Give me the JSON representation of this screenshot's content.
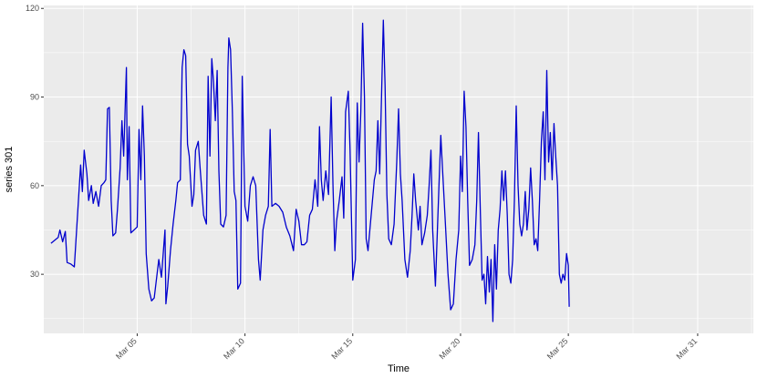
{
  "chart_data": {
    "type": "line",
    "title": "",
    "xlabel": "Time",
    "ylabel": "series 301",
    "xlim": [
      "2023-02-28T16:00",
      "2023-04-02T14:00"
    ],
    "ylim": [
      10,
      121
    ],
    "x_ticks": [
      {
        "label": "Mar 05",
        "date": "2023-03-05"
      },
      {
        "label": "Mar 10",
        "date": "2023-03-10"
      },
      {
        "label": "Mar 15",
        "date": "2023-03-15"
      },
      {
        "label": "Mar 20",
        "date": "2023-03-20"
      },
      {
        "label": "Mar 25",
        "date": "2023-03-25"
      },
      {
        "label": "Mar 31",
        "date": "2023-03-31"
      }
    ],
    "y_ticks": [
      30,
      60,
      90,
      120
    ],
    "grid": true,
    "legend": "none",
    "colors": {
      "line": "#0000cd",
      "panel": "#ebebeb",
      "grid": "#ffffff"
    },
    "series": [
      {
        "points": [
          [
            "2023-03-01T00:00",
            40.5
          ],
          [
            "2023-03-01T08:00",
            42.5
          ],
          [
            "2023-03-01T10:00",
            45
          ],
          [
            "2023-03-01T13:00",
            41
          ],
          [
            "2023-03-01T16:00",
            44.5
          ],
          [
            "2023-03-01T18:00",
            34
          ],
          [
            "2023-03-01T22:00",
            33.5
          ],
          [
            "2023-03-02T02:00",
            32.5
          ],
          [
            "2023-03-02T06:00",
            52
          ],
          [
            "2023-03-02T09:00",
            67
          ],
          [
            "2023-03-02T11:00",
            58
          ],
          [
            "2023-03-02T13:00",
            72
          ],
          [
            "2023-03-02T16:00",
            64
          ],
          [
            "2023-03-02T18:00",
            55
          ],
          [
            "2023-03-02T21:00",
            60
          ],
          [
            "2023-03-02T23:00",
            54
          ],
          [
            "2023-03-03T02:00",
            58
          ],
          [
            "2023-03-03T05:00",
            53
          ],
          [
            "2023-03-03T08:00",
            60
          ],
          [
            "2023-03-03T11:00",
            61
          ],
          [
            "2023-03-03T13:00",
            62
          ],
          [
            "2023-03-03T15:00",
            86
          ],
          [
            "2023-03-03T17:00",
            86.5
          ],
          [
            "2023-03-03T19:00",
            55
          ],
          [
            "2023-03-03T21:00",
            43
          ],
          [
            "2023-03-04T00:00",
            44
          ],
          [
            "2023-03-04T02:00",
            52
          ],
          [
            "2023-03-04T05:00",
            66
          ],
          [
            "2023-03-04T07:00",
            82
          ],
          [
            "2023-03-04T09:00",
            70
          ],
          [
            "2023-03-04T12:00",
            100
          ],
          [
            "2023-03-04T13:00",
            62
          ],
          [
            "2023-03-04T15:00",
            80
          ],
          [
            "2023-03-04T17:00",
            44
          ],
          [
            "2023-03-05T00:00",
            46
          ],
          [
            "2023-03-05T02:00",
            79
          ],
          [
            "2023-03-05T04:00",
            62
          ],
          [
            "2023-03-05T06:00",
            87
          ],
          [
            "2023-03-05T08:00",
            70
          ],
          [
            "2023-03-05T10:00",
            37
          ],
          [
            "2023-03-05T13:00",
            25
          ],
          [
            "2023-03-05T16:00",
            21
          ],
          [
            "2023-03-05T19:00",
            22
          ],
          [
            "2023-03-06T00:00",
            35
          ],
          [
            "2023-03-06T03:00",
            29
          ],
          [
            "2023-03-06T07:00",
            45
          ],
          [
            "2023-03-06T08:00",
            20
          ],
          [
            "2023-03-06T10:00",
            26
          ],
          [
            "2023-03-06T13:00",
            38
          ],
          [
            "2023-03-06T16:00",
            47
          ],
          [
            "2023-03-06T19:00",
            55
          ],
          [
            "2023-03-06T21:00",
            61
          ],
          [
            "2023-03-07T00:00",
            62
          ],
          [
            "2023-03-07T02:00",
            100
          ],
          [
            "2023-03-07T04:00",
            106
          ],
          [
            "2023-03-07T06:00",
            104
          ],
          [
            "2023-03-07T08:00",
            74
          ],
          [
            "2023-03-07T10:00",
            70
          ],
          [
            "2023-03-07T13:00",
            53
          ],
          [
            "2023-03-07T15:00",
            57
          ],
          [
            "2023-03-07T17:00",
            72
          ],
          [
            "2023-03-07T20:00",
            75
          ],
          [
            "2023-03-07T22:00",
            66
          ],
          [
            "2023-03-08T02:00",
            50
          ],
          [
            "2023-03-08T05:00",
            47
          ],
          [
            "2023-03-08T07:00",
            97
          ],
          [
            "2023-03-08T09:00",
            70
          ],
          [
            "2023-03-08T11:00",
            103
          ],
          [
            "2023-03-08T13:00",
            95
          ],
          [
            "2023-03-08T15:00",
            82
          ],
          [
            "2023-03-08T17:00",
            99
          ],
          [
            "2023-03-08T19:00",
            65
          ],
          [
            "2023-03-08T21:00",
            47
          ],
          [
            "2023-03-09T00:00",
            46
          ],
          [
            "2023-03-09T03:00",
            50
          ],
          [
            "2023-03-09T05:00",
            100
          ],
          [
            "2023-03-09T06:00",
            110
          ],
          [
            "2023-03-09T08:00",
            106
          ],
          [
            "2023-03-09T10:00",
            85
          ],
          [
            "2023-03-09T12:00",
            58
          ],
          [
            "2023-03-09T14:00",
            55
          ],
          [
            "2023-03-09T16:00",
            25
          ],
          [
            "2023-03-09T19:00",
            27
          ],
          [
            "2023-03-09T21:00",
            97
          ],
          [
            "2023-03-10T00:00",
            53
          ],
          [
            "2023-03-10T03:00",
            48
          ],
          [
            "2023-03-10T06:00",
            60
          ],
          [
            "2023-03-10T09:00",
            63
          ],
          [
            "2023-03-10T12:00",
            60
          ],
          [
            "2023-03-10T15:00",
            35
          ],
          [
            "2023-03-10T17:00",
            28
          ],
          [
            "2023-03-10T20:00",
            45
          ],
          [
            "2023-03-10T23:00",
            50
          ],
          [
            "2023-03-11T02:00",
            53
          ],
          [
            "2023-03-11T04:00",
            79
          ],
          [
            "2023-03-11T06:00",
            53
          ],
          [
            "2023-03-11T10:00",
            54
          ],
          [
            "2023-03-11T14:00",
            53
          ],
          [
            "2023-03-11T18:00",
            51
          ],
          [
            "2023-03-11T22:00",
            46
          ],
          [
            "2023-03-12T02:00",
            43
          ],
          [
            "2023-03-12T06:00",
            38
          ],
          [
            "2023-03-12T09:00",
            52
          ],
          [
            "2023-03-12T12:00",
            48
          ],
          [
            "2023-03-12T15:00",
            40
          ],
          [
            "2023-03-12T18:00",
            40
          ],
          [
            "2023-03-12T21:00",
            41
          ],
          [
            "2023-03-13T00:00",
            50
          ],
          [
            "2023-03-13T03:00",
            52
          ],
          [
            "2023-03-13T06:00",
            62
          ],
          [
            "2023-03-13T09:00",
            53
          ],
          [
            "2023-03-13T11:00",
            80
          ],
          [
            "2023-03-13T13:00",
            62
          ],
          [
            "2023-03-13T15:00",
            55
          ],
          [
            "2023-03-13T18:00",
            65
          ],
          [
            "2023-03-13T21:00",
            57
          ],
          [
            "2023-03-14T00:00",
            90
          ],
          [
            "2023-03-14T02:00",
            60
          ],
          [
            "2023-03-14T04:00",
            38
          ],
          [
            "2023-03-14T06:00",
            48
          ],
          [
            "2023-03-14T09:00",
            55
          ],
          [
            "2023-03-14T12:00",
            63
          ],
          [
            "2023-03-14T14:00",
            49
          ],
          [
            "2023-03-14T16:00",
            85
          ],
          [
            "2023-03-14T19:00",
            92
          ],
          [
            "2023-03-14T21:00",
            72
          ],
          [
            "2023-03-15T00:00",
            28
          ],
          [
            "2023-03-15T03:00",
            35
          ],
          [
            "2023-03-15T05:00",
            88
          ],
          [
            "2023-03-15T07:00",
            68
          ],
          [
            "2023-03-15T09:00",
            85
          ],
          [
            "2023-03-15T11:00",
            115
          ],
          [
            "2023-03-15T13:00",
            90
          ],
          [
            "2023-03-15T15:00",
            42
          ],
          [
            "2023-03-15T17:00",
            38
          ],
          [
            "2023-03-16T00:00",
            62
          ],
          [
            "2023-03-16T02:00",
            65
          ],
          [
            "2023-03-16T04:00",
            82
          ],
          [
            "2023-03-16T06:00",
            64
          ],
          [
            "2023-03-16T08:00",
            90
          ],
          [
            "2023-03-16T10:00",
            116
          ],
          [
            "2023-03-16T12:00",
            94
          ],
          [
            "2023-03-16T14:00",
            57
          ],
          [
            "2023-03-16T16:00",
            42
          ],
          [
            "2023-03-16T19:00",
            40
          ],
          [
            "2023-03-16T22:00",
            47
          ],
          [
            "2023-03-17T01:00",
            68
          ],
          [
            "2023-03-17T03:00",
            86
          ],
          [
            "2023-03-17T05:00",
            64
          ],
          [
            "2023-03-17T07:00",
            55
          ],
          [
            "2023-03-17T10:00",
            35
          ],
          [
            "2023-03-17T13:00",
            29
          ],
          [
            "2023-03-17T16:00",
            38
          ],
          [
            "2023-03-17T18:00",
            50
          ],
          [
            "2023-03-17T20:00",
            64
          ],
          [
            "2023-03-17T22:00",
            55
          ],
          [
            "2023-03-18T01:00",
            45
          ],
          [
            "2023-03-18T03:00",
            53
          ],
          [
            "2023-03-18T05:00",
            40
          ],
          [
            "2023-03-18T08:00",
            44
          ],
          [
            "2023-03-18T11:00",
            50
          ],
          [
            "2023-03-18T13:00",
            60
          ],
          [
            "2023-03-18T15:00",
            72
          ],
          [
            "2023-03-18T17:00",
            45
          ],
          [
            "2023-03-18T20:00",
            26
          ],
          [
            "2023-03-19T00:00",
            60
          ],
          [
            "2023-03-19T02:00",
            77
          ],
          [
            "2023-03-19T04:00",
            65
          ],
          [
            "2023-03-19T07:00",
            48
          ],
          [
            "2023-03-19T10:00",
            30
          ],
          [
            "2023-03-19T13:00",
            18
          ],
          [
            "2023-03-19T16:00",
            20
          ],
          [
            "2023-03-19T19:00",
            35
          ],
          [
            "2023-03-19T22:00",
            45
          ],
          [
            "2023-03-20T00:00",
            70
          ],
          [
            "2023-03-20T02:00",
            58
          ],
          [
            "2023-03-20T04:00",
            92
          ],
          [
            "2023-03-20T06:00",
            80
          ],
          [
            "2023-03-20T08:00",
            55
          ],
          [
            "2023-03-20T10:00",
            33
          ],
          [
            "2023-03-20T13:00",
            35
          ],
          [
            "2023-03-20T16:00",
            40
          ],
          [
            "2023-03-20T18:00",
            55
          ],
          [
            "2023-03-20T20:00",
            78
          ],
          [
            "2023-03-20T22:00",
            52
          ],
          [
            "2023-03-21T00:00",
            28
          ],
          [
            "2023-03-21T02:00",
            30
          ],
          [
            "2023-03-21T04:00",
            20
          ],
          [
            "2023-03-21T06:00",
            36
          ],
          [
            "2023-03-21T08:00",
            24
          ],
          [
            "2023-03-21T10:00",
            35
          ],
          [
            "2023-03-21T12:00",
            14
          ],
          [
            "2023-03-21T14:00",
            40
          ],
          [
            "2023-03-21T16:00",
            25
          ],
          [
            "2023-03-21T18:00",
            45
          ],
          [
            "2023-03-21T20:00",
            52
          ],
          [
            "2023-03-21T22:00",
            65
          ],
          [
            "2023-03-22T00:00",
            55
          ],
          [
            "2023-03-22T02:00",
            65
          ],
          [
            "2023-03-22T04:00",
            50
          ],
          [
            "2023-03-22T06:00",
            30
          ],
          [
            "2023-03-22T08:00",
            27
          ],
          [
            "2023-03-22T10:00",
            35
          ],
          [
            "2023-03-22T12:00",
            55
          ],
          [
            "2023-03-22T14:00",
            87
          ],
          [
            "2023-03-22T16:00",
            60
          ],
          [
            "2023-03-22T18:00",
            47
          ],
          [
            "2023-03-22T20:00",
            43
          ],
          [
            "2023-03-22T22:00",
            47
          ],
          [
            "2023-03-23T00:00",
            58
          ],
          [
            "2023-03-23T02:00",
            45
          ],
          [
            "2023-03-23T04:00",
            52
          ],
          [
            "2023-03-23T06:00",
            66
          ],
          [
            "2023-03-23T08:00",
            55
          ],
          [
            "2023-03-23T10:00",
            40
          ],
          [
            "2023-03-23T12:00",
            42
          ],
          [
            "2023-03-23T14:00",
            38
          ],
          [
            "2023-03-23T16:00",
            55
          ],
          [
            "2023-03-23T18:00",
            75
          ],
          [
            "2023-03-23T20:00",
            85
          ],
          [
            "2023-03-23T22:00",
            62
          ],
          [
            "2023-03-24T00:00",
            99
          ],
          [
            "2023-03-24T02:00",
            68
          ],
          [
            "2023-03-24T04:00",
            78
          ],
          [
            "2023-03-24T06:00",
            62
          ],
          [
            "2023-03-24T08:00",
            81
          ],
          [
            "2023-03-24T10:00",
            70
          ],
          [
            "2023-03-24T12:00",
            60
          ],
          [
            "2023-03-24T14:00",
            30
          ],
          [
            "2023-03-24T16:00",
            27
          ],
          [
            "2023-03-24T18:00",
            30
          ],
          [
            "2023-03-24T20:00",
            28
          ],
          [
            "2023-03-24T22:00",
            37
          ],
          [
            "2023-03-25T00:00",
            33
          ],
          [
            "2023-03-25T01:00",
            19
          ]
        ]
      }
    ]
  }
}
